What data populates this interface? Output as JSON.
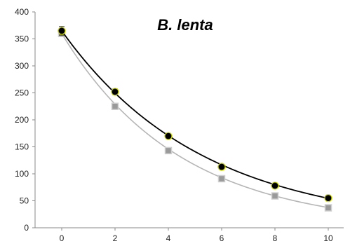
{
  "chart_data": {
    "type": "scatter",
    "title": "B. lenta",
    "xlabel": "",
    "ylabel": "",
    "xlim": [
      0,
      10
    ],
    "ylim": [
      0,
      400
    ],
    "x_ticks": [
      0,
      2,
      4,
      6,
      8,
      10
    ],
    "y_ticks": [
      0,
      50,
      100,
      150,
      200,
      250,
      300,
      350,
      400
    ],
    "grid": false,
    "legend": "none",
    "series": [
      {
        "color": "#000000",
        "marker_color": "#000000",
        "marker_edge": "#c8d400",
        "marker": "circle",
        "x": [
          0,
          2,
          4,
          6,
          8,
          10
        ],
        "y": [
          365,
          252,
          170,
          113,
          78,
          55
        ],
        "error": [
          8,
          5,
          4,
          3,
          3,
          3
        ],
        "fit": {
          "type": "exponential",
          "a": 365,
          "k": 0.19
        }
      },
      {
        "color": "#b5b5b5",
        "marker_color": "#9a9a9a",
        "marker_edge": "#cfcfcf",
        "marker": "square",
        "x": [
          0,
          2,
          4,
          6,
          8,
          10
        ],
        "y": [
          360,
          225,
          143,
          91,
          59,
          37
        ],
        "error": [
          6,
          4,
          4,
          3,
          3,
          3
        ],
        "fit": {
          "type": "exponential",
          "a": 360,
          "k": 0.226
        }
      }
    ]
  }
}
